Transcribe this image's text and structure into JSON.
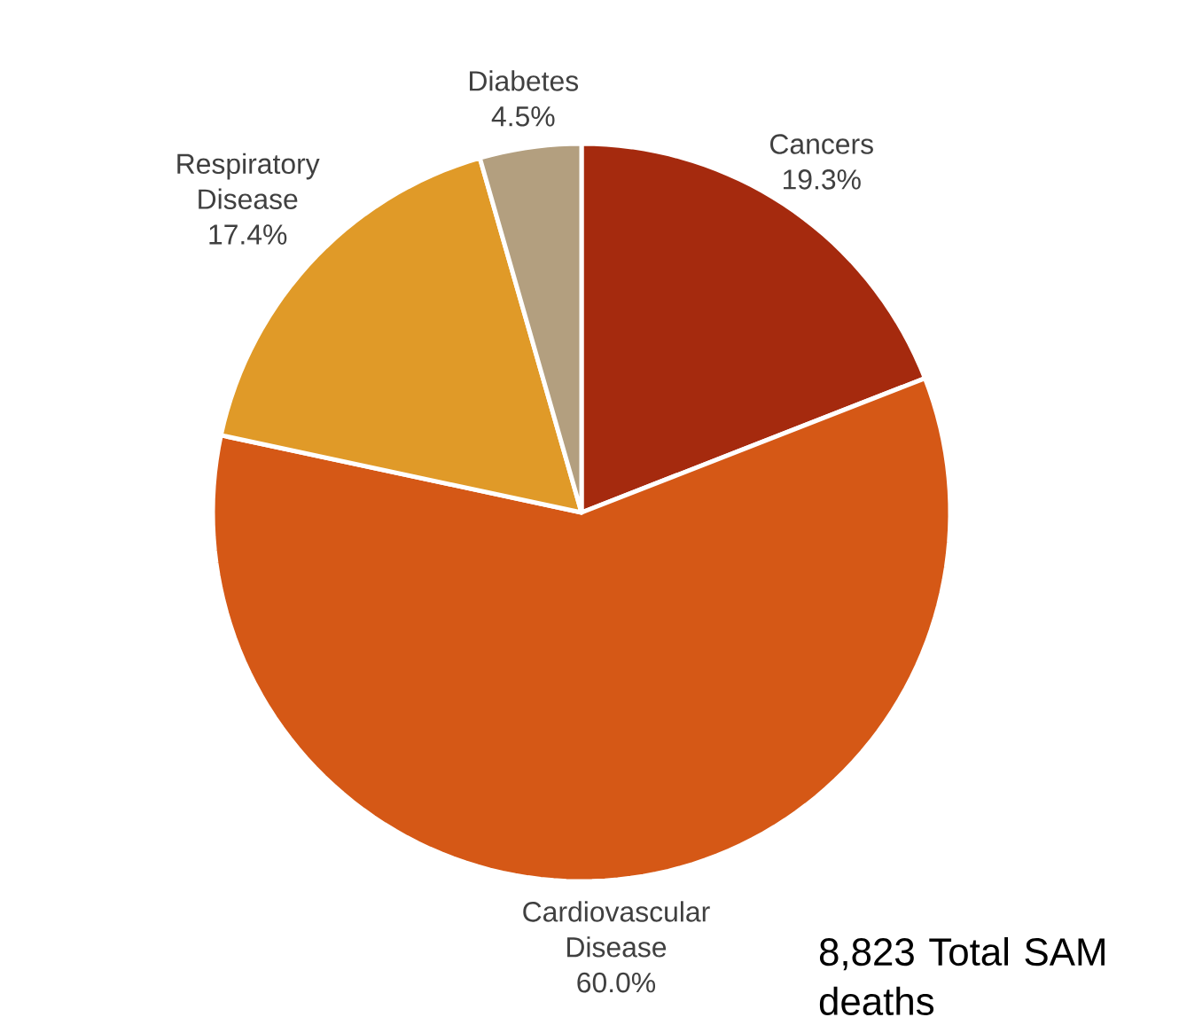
{
  "chart_data": {
    "type": "pie",
    "categories": [
      "Cancers",
      "Cardiovascular Disease",
      "Respiratory Disease",
      "Diabetes"
    ],
    "values": [
      19.3,
      60.0,
      17.4,
      4.5
    ],
    "value_labels": [
      "19.3%",
      "60.0%",
      "17.4%",
      "4.5%"
    ],
    "colors": [
      "#a52a0e",
      "#d55816",
      "#e09a28",
      "#b39f7f"
    ],
    "annotations": [
      "8,823 Total SAM deaths"
    ]
  }
}
